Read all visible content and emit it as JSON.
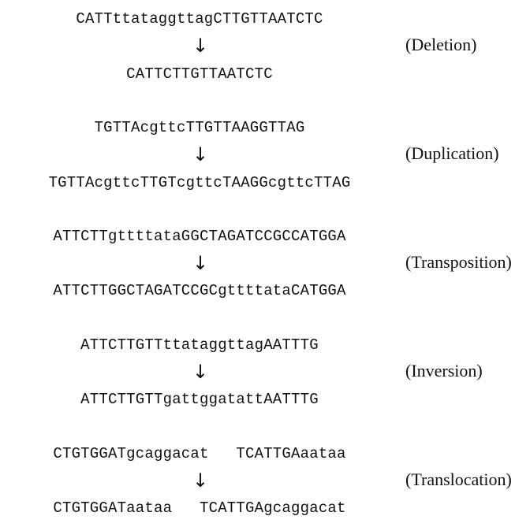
{
  "mutations": [
    {
      "label": "(Deletion)",
      "before": "CATTttataggttagCTTGTTAATCTC",
      "arrow": "↓",
      "after": "CATTCTTGTTAATCTC"
    },
    {
      "label": "(Duplication)",
      "before": "TGTTAcgttcTTGTTAAGGTTAG",
      "arrow": "↓",
      "after": "TGTTAcgttcTTGTcgttcTAAGGcgttcTTAG"
    },
    {
      "label": "(Transposition)",
      "before": "ATTCTTgttttataGGCTAGATCCGCCATGGA",
      "arrow": "↓",
      "after": "ATTCTTGGCTAGATCCGCgttttataCATGGA"
    },
    {
      "label": "(Inversion)",
      "before": "ATTCTTGTTttataggttagAATTTG",
      "arrow": "↓",
      "after": "ATTCTTGTTgattggatattAATTTG"
    },
    {
      "label": "(Translocation)",
      "before": "CTGTGGATgcaggacat   TCATTGAaataa",
      "arrow": "↓",
      "after": "CTGTGGATaataa   TCATTGAgcaggacat"
    }
  ]
}
